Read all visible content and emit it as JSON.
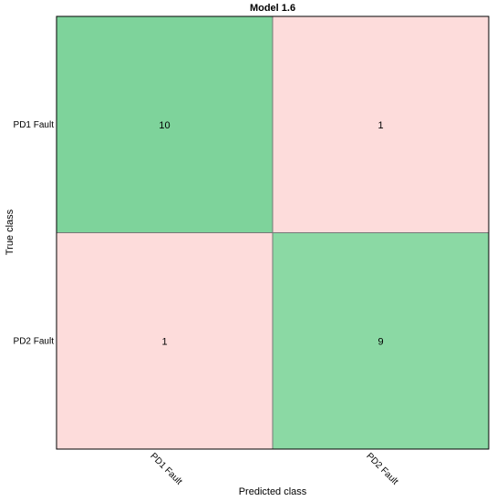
{
  "chart_data": {
    "type": "heatmap",
    "title": "Model 1.6",
    "xlabel": "Predicted class",
    "ylabel": "True class",
    "row_labels": [
      "PD1 Fault",
      "PD2 Fault"
    ],
    "col_labels": [
      "PD1 Fault",
      "PD2 Fault"
    ],
    "matrix": [
      [
        10,
        1
      ],
      [
        1,
        9
      ]
    ],
    "colors": {
      "correct_strong": "#7ed39b",
      "correct_weak": "#8bd9a4",
      "incorrect": "#fddcdb",
      "border": "#000000",
      "divider": "#777777"
    }
  }
}
